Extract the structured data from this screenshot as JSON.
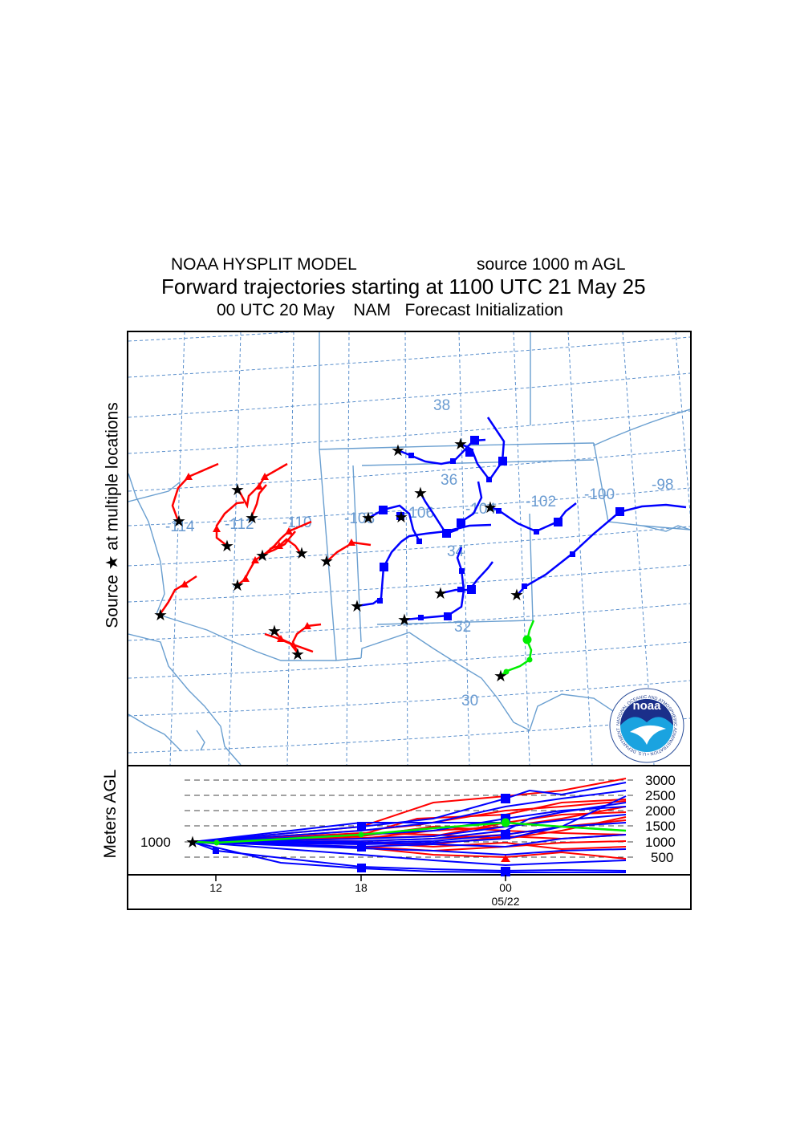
{
  "header": {
    "model": "NOAA HYSPLIT MODEL",
    "source_height": "source 1000 m AGL",
    "main_title": "Forward trajectories starting at 1100 UTC 21 May 25",
    "subtitle": "00 UTC 20 May    NAM   Forecast Initialization"
  },
  "side_label": "Source ★  at multiple locations",
  "map": {
    "lon_labels": [
      "-114",
      "-112",
      "-110",
      "-108",
      "-106",
      "-104",
      "-102",
      "-100",
      "-98"
    ],
    "lat_labels": [
      "38",
      "36",
      "34",
      "32",
      "30"
    ],
    "colors": {
      "grid": "#5a8fcc",
      "border": "#6a9fd0",
      "label": "#6a9bd1",
      "red": "#ff0000",
      "blue": "#0000ff",
      "green": "#00ee00"
    }
  },
  "logo": {
    "text": "noaa",
    "ring_text": "NATIONAL OCEANIC AND ATMOSPHERIC ADMINISTRATION • U.S. DEPARTMENT OF COMMERCE"
  },
  "height_panel": {
    "ylabel": "Meters AGL",
    "source_level": "1000",
    "levels": [
      "3000",
      "2500",
      "2000",
      "1500",
      "1000",
      "500"
    ],
    "x_ticks": [
      "12",
      "18",
      "00"
    ],
    "date_label": "05/22"
  }
}
